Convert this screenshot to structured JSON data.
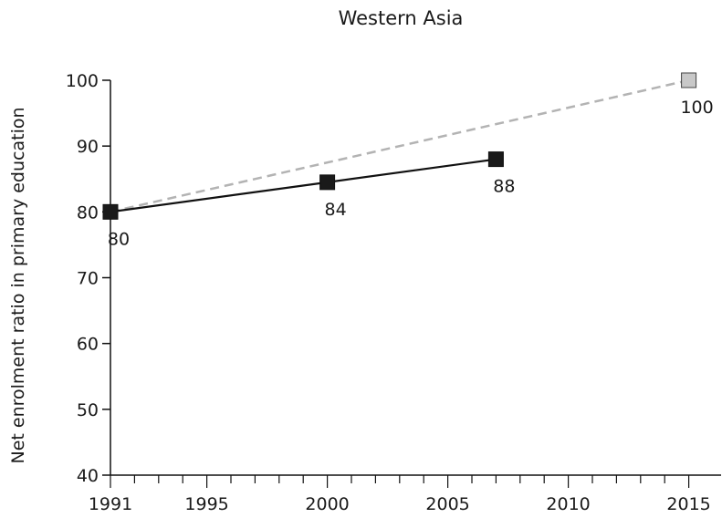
{
  "chart_data": {
    "type": "line",
    "title": "Western Asia",
    "xlabel": "",
    "ylabel": "Net enrolment ratio in primary education",
    "xlim": [
      1991,
      2015
    ],
    "ylim": [
      40,
      100
    ],
    "x_ticks": [
      1991,
      1995,
      2000,
      2005,
      2010,
      2015
    ],
    "y_ticks": [
      40,
      50,
      60,
      70,
      80,
      90,
      100
    ],
    "grid": false,
    "legend": "none",
    "series": [
      {
        "style": "solid",
        "color": "#111111",
        "marker_color": "#1a1a1a",
        "points": [
          {
            "x": 1991,
            "y": 80,
            "label": "80"
          },
          {
            "x": 2000,
            "y": 84.5,
            "label": "84"
          },
          {
            "x": 2007,
            "y": 88,
            "label": "88"
          }
        ]
      },
      {
        "style": "dashed",
        "color": "#b3b3b3",
        "marker_color": "#c8c8c8",
        "points": [
          {
            "x": 1991,
            "y": 80,
            "label": ""
          },
          {
            "x": 2015,
            "y": 100,
            "label": "100"
          }
        ]
      }
    ]
  }
}
